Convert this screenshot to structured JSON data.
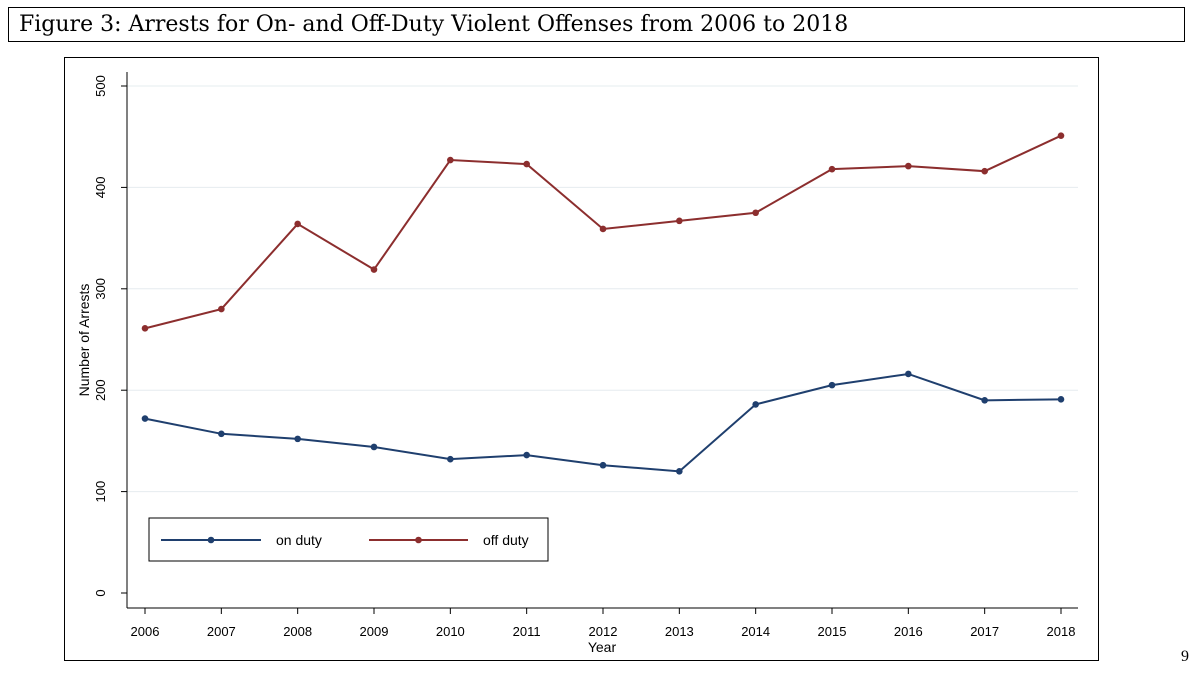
{
  "figure_title": "Figure 3: Arrests for On- and Off-Duty Violent Offenses from 2006 to 2018",
  "page_number": "9",
  "chart_data": {
    "type": "line",
    "xlabel": "Year",
    "ylabel": "Number of Arrests",
    "x": [
      2006,
      2007,
      2008,
      2009,
      2010,
      2011,
      2012,
      2013,
      2014,
      2015,
      2016,
      2017,
      2018
    ],
    "ylim": [
      0,
      500
    ],
    "yticks": [
      0,
      100,
      200,
      300,
      400,
      500
    ],
    "grid": true,
    "legend_position": "bottom-left",
    "series": [
      {
        "name": "on duty",
        "color": "#1f3f6e",
        "values": [
          172,
          157,
          152,
          144,
          132,
          136,
          126,
          120,
          186,
          205,
          216,
          190,
          191
        ]
      },
      {
        "name": "off duty",
        "color": "#8c2e2e",
        "values": [
          261,
          280,
          364,
          319,
          427,
          423,
          359,
          367,
          375,
          418,
          421,
          416,
          451
        ]
      }
    ]
  }
}
